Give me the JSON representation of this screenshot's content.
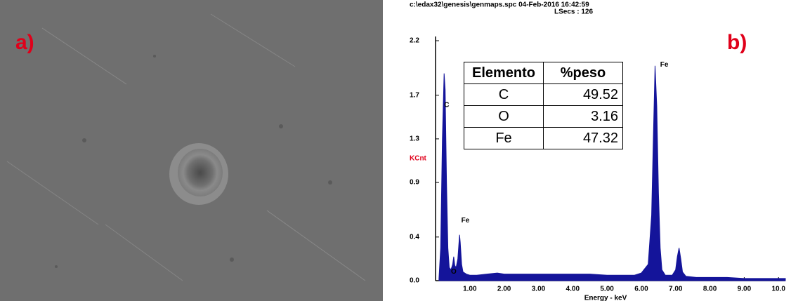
{
  "panels": {
    "a": "a)",
    "b": "b)"
  },
  "table": {
    "header": [
      "Elemento",
      "%peso"
    ],
    "rows": [
      [
        "C",
        "49.52"
      ],
      [
        "O",
        "3.16"
      ],
      [
        "Fe",
        "47.32"
      ]
    ]
  },
  "chart_data": {
    "type": "area",
    "header": "c:\\edax32\\genesis\\genmaps.spc  04-Feb-2016 16:42:59",
    "subheader": "LSecs : 126",
    "y_label": "KCnt",
    "x_label": "Energy - keV",
    "color": "#14149a",
    "x": [
      0.1,
      0.15,
      0.2,
      0.25,
      0.28,
      0.32,
      0.36,
      0.4,
      0.45,
      0.5,
      0.53,
      0.56,
      0.6,
      0.65,
      0.7,
      0.72,
      0.76,
      0.8,
      0.9,
      1.0,
      1.2,
      1.5,
      1.8,
      2.0,
      2.5,
      3.0,
      3.5,
      4.0,
      4.5,
      5.0,
      5.5,
      5.8,
      6.0,
      6.2,
      6.3,
      6.35,
      6.4,
      6.45,
      6.5,
      6.55,
      6.6,
      6.7,
      6.9,
      7.0,
      7.05,
      7.1,
      7.15,
      7.2,
      7.3,
      7.6,
      8.0,
      8.5,
      9.0,
      9.5,
      10.0,
      10.2
    ],
    "values": [
      0.02,
      0.3,
      1.3,
      1.9,
      1.75,
      0.9,
      0.3,
      0.12,
      0.1,
      0.15,
      0.22,
      0.14,
      0.12,
      0.2,
      0.42,
      0.35,
      0.15,
      0.08,
      0.06,
      0.05,
      0.05,
      0.06,
      0.07,
      0.06,
      0.06,
      0.06,
      0.06,
      0.06,
      0.06,
      0.05,
      0.05,
      0.05,
      0.07,
      0.15,
      0.6,
      1.3,
      1.97,
      1.6,
      0.8,
      0.3,
      0.1,
      0.05,
      0.05,
      0.1,
      0.22,
      0.3,
      0.2,
      0.08,
      0.04,
      0.03,
      0.03,
      0.03,
      0.02,
      0.02,
      0.02,
      0.02
    ],
    "xlim": [
      0,
      10.2
    ],
    "ylim": [
      0,
      2.2
    ],
    "xticks": [
      {
        "value": 1,
        "label": "1.00"
      },
      {
        "value": 2,
        "label": "2.00"
      },
      {
        "value": 3,
        "label": "3.00"
      },
      {
        "value": 4,
        "label": "4.00"
      },
      {
        "value": 5,
        "label": "5.00"
      },
      {
        "value": 6,
        "label": "6.00"
      },
      {
        "value": 7,
        "label": "7.00"
      },
      {
        "value": 8,
        "label": "8.00"
      },
      {
        "value": 9,
        "label": "9.00"
      },
      {
        "value": 10,
        "label": "10.0"
      }
    ],
    "yticks": [
      {
        "value": 0,
        "label": "0.0"
      },
      0.4,
      0.9,
      1.3,
      1.7,
      2.2
    ],
    "annotations": [
      {
        "text": "C",
        "x": 0.25,
        "y": 1.61
      },
      {
        "text": "O",
        "x": 0.45,
        "y": 0.08
      },
      {
        "text": "Fe",
        "x": 0.75,
        "y": 0.55
      },
      {
        "text": "Fe",
        "x": 6.55,
        "y": 1.98
      }
    ]
  }
}
